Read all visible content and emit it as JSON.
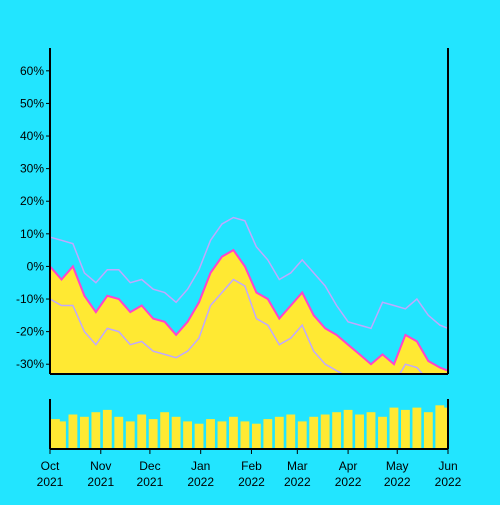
{
  "colors": {
    "background": "#22e5ff",
    "price_fill": "#ffe933",
    "price_line": "#ff44cc",
    "band_lines": "#c0a8ff",
    "axis": "#000000",
    "volume_fill": "#ffe933"
  },
  "chart_data": [
    {
      "type": "area",
      "title": "",
      "xlabel": "",
      "ylabel": "",
      "ylim": [
        -33,
        67
      ],
      "y_ticks": [
        -30,
        -20,
        -10,
        0,
        10,
        20,
        30,
        40,
        50,
        60
      ],
      "y_tick_labels": [
        "-30%",
        "-20%",
        "-10%",
        "0%",
        "10%",
        "20%",
        "30%",
        "40%",
        "50%",
        "60%"
      ],
      "x_range": [
        "2021-10-01",
        "2022-06-01"
      ],
      "x_ticks": [
        "2021-10-01",
        "2021-11-01",
        "2021-12-01",
        "2022-01-01",
        "2022-02-01",
        "2022-03-01",
        "2022-04-01",
        "2022-05-01",
        "2022-06-01"
      ],
      "x_tick_labels": [
        {
          "month": "Oct",
          "year": "2021"
        },
        {
          "month": "Nov",
          "year": "2021"
        },
        {
          "month": "Dec",
          "year": "2021"
        },
        {
          "month": "Jan",
          "year": "2022"
        },
        {
          "month": "Feb",
          "year": "2022"
        },
        {
          "month": "Mar",
          "year": "2022"
        },
        {
          "month": "Apr",
          "year": "2022"
        },
        {
          "month": "May",
          "year": "2022"
        },
        {
          "month": "Jun",
          "year": "2022"
        }
      ],
      "grid": false,
      "series": [
        {
          "role": "price",
          "x": [
            "2021-10-01",
            "2021-10-08",
            "2021-10-15",
            "2021-10-22",
            "2021-10-29",
            "2021-11-05",
            "2021-11-12",
            "2021-11-19",
            "2021-11-26",
            "2021-12-03",
            "2021-12-10",
            "2021-12-17",
            "2021-12-24",
            "2021-12-31",
            "2022-01-07",
            "2022-01-14",
            "2022-01-21",
            "2022-01-28",
            "2022-02-04",
            "2022-02-11",
            "2022-02-18",
            "2022-02-25",
            "2022-03-04",
            "2022-03-11",
            "2022-03-18",
            "2022-03-25",
            "2022-04-01",
            "2022-04-08",
            "2022-04-15",
            "2022-04-22",
            "2022-04-29",
            "2022-05-06",
            "2022-05-13",
            "2022-05-20",
            "2022-05-27",
            "2022-06-01"
          ],
          "y": [
            0,
            -4,
            0,
            -9,
            -14,
            -9,
            -10,
            -14,
            -12,
            -16,
            -17,
            -21,
            -17,
            -11,
            -2,
            3,
            5,
            0,
            -8,
            -10,
            -16,
            -12,
            -8,
            -15,
            -19,
            -21,
            -24,
            -27,
            -30,
            -27,
            -30,
            -21,
            -23,
            -29,
            -31,
            -32
          ]
        },
        {
          "role": "upper-band",
          "x": [
            "2021-10-01",
            "2021-10-08",
            "2021-10-15",
            "2021-10-22",
            "2021-10-29",
            "2021-11-05",
            "2021-11-12",
            "2021-11-19",
            "2021-11-26",
            "2021-12-03",
            "2021-12-10",
            "2021-12-17",
            "2021-12-24",
            "2021-12-31",
            "2022-01-07",
            "2022-01-14",
            "2022-01-21",
            "2022-01-28",
            "2022-02-04",
            "2022-02-11",
            "2022-02-18",
            "2022-02-25",
            "2022-03-04",
            "2022-03-11",
            "2022-03-18",
            "2022-03-25",
            "2022-04-01",
            "2022-04-08",
            "2022-04-15",
            "2022-04-22",
            "2022-04-29",
            "2022-05-06",
            "2022-05-13",
            "2022-05-20",
            "2022-05-27",
            "2022-06-01"
          ],
          "y": [
            9,
            8,
            7,
            -2,
            -5,
            -1,
            -1,
            -5,
            -4,
            -7,
            -8,
            -11,
            -7,
            -1,
            8,
            13,
            15,
            14,
            6,
            2,
            -4,
            -2,
            2,
            -2,
            -6,
            -12,
            -17,
            -18,
            -19,
            -11,
            -12,
            -13,
            -10,
            -15,
            -18,
            -19
          ]
        },
        {
          "role": "lower-band",
          "x": [
            "2021-10-01",
            "2021-10-08",
            "2021-10-15",
            "2021-10-22",
            "2021-10-29",
            "2021-11-05",
            "2021-11-12",
            "2021-11-19",
            "2021-11-26",
            "2021-12-03",
            "2021-12-10",
            "2021-12-17",
            "2021-12-24",
            "2021-12-31",
            "2022-01-07",
            "2022-01-14",
            "2022-01-21",
            "2022-01-28",
            "2022-02-04",
            "2022-02-11",
            "2022-02-18",
            "2022-02-25",
            "2022-03-04",
            "2022-03-11",
            "2022-03-18",
            "2022-03-25",
            "2022-04-01",
            "2022-04-08",
            "2022-04-15",
            "2022-04-22",
            "2022-04-29",
            "2022-05-06",
            "2022-05-13",
            "2022-05-20",
            "2022-05-27",
            "2022-06-01"
          ],
          "y": [
            -10,
            -12,
            -12,
            -20,
            -24,
            -19,
            -20,
            -24,
            -23,
            -26,
            -27,
            -28,
            -26,
            -22,
            -12,
            -8,
            -4,
            -6,
            -16,
            -18,
            -24,
            -22,
            -18,
            -26,
            -30,
            -32,
            -34,
            -36,
            -37,
            -35,
            -36,
            -30,
            -31,
            -35,
            -37,
            -38
          ]
        }
      ]
    },
    {
      "type": "bar",
      "role": "volume",
      "x_range": [
        "2021-10-01",
        "2022-06-01"
      ],
      "x": [
        "2021-10-01",
        "2021-10-08",
        "2021-10-15",
        "2021-10-22",
        "2021-10-29",
        "2021-11-05",
        "2021-11-12",
        "2021-11-19",
        "2021-11-26",
        "2021-12-03",
        "2021-12-10",
        "2021-12-17",
        "2021-12-24",
        "2021-12-31",
        "2022-01-07",
        "2022-01-14",
        "2022-01-21",
        "2022-01-28",
        "2022-02-04",
        "2022-02-11",
        "2022-02-18",
        "2022-02-25",
        "2022-03-04",
        "2022-03-11",
        "2022-03-18",
        "2022-03-25",
        "2022-04-01",
        "2022-04-08",
        "2022-04-15",
        "2022-04-22",
        "2022-04-29",
        "2022-05-06",
        "2022-05-13",
        "2022-05-20",
        "2022-05-27",
        "2022-06-01"
      ],
      "values": [
        0.65,
        0.6,
        0.75,
        0.7,
        0.8,
        0.85,
        0.7,
        0.6,
        0.75,
        0.65,
        0.8,
        0.7,
        0.6,
        0.55,
        0.65,
        0.6,
        0.7,
        0.6,
        0.55,
        0.65,
        0.7,
        0.75,
        0.6,
        0.7,
        0.75,
        0.8,
        0.85,
        0.75,
        0.8,
        0.7,
        0.9,
        0.85,
        0.9,
        0.8,
        0.95,
        0.9
      ],
      "ylim": [
        0,
        1
      ]
    }
  ]
}
